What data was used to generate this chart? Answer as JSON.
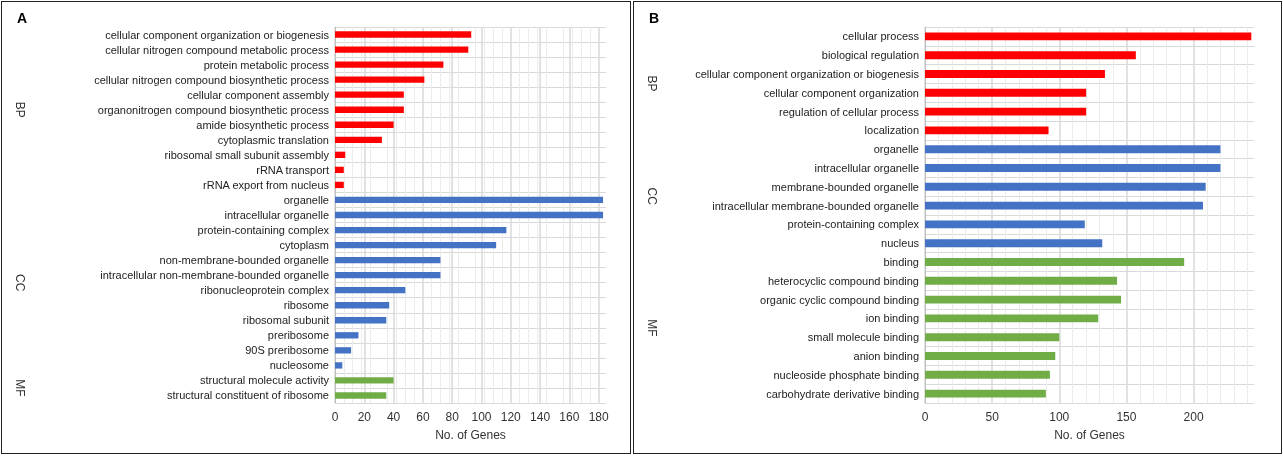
{
  "chart_data": [
    {
      "type": "bar",
      "orientation": "horizontal",
      "title": "A",
      "xlabel": "No. of Genes",
      "grid": true,
      "categories": [
        "cellular component organization or biogenesis",
        "cellular nitrogen compound metabolic process",
        "protein metabolic process",
        "cellular nitrogen compound biosynthetic process",
        "cellular component assembly",
        "organonitrogen compound biosynthetic process",
        "amide biosynthetic process",
        "cytoplasmic translation",
        "ribosomal small subunit assembly",
        "rRNA transport",
        "rRNA export from nucleus",
        "organelle",
        "intracellular organelle",
        "protein-containing complex",
        "cytoplasm",
        "non-membrane-bounded organelle",
        "intracellular non-membrane-bounded organelle",
        "ribonucleoprotein complex",
        "ribosome",
        "ribosomal subunit",
        "preribosome",
        "90S preribosome",
        "nucleosome",
        "structural molecule activity",
        "structural constituent of ribosome"
      ],
      "values": [
        93,
        91,
        74,
        61,
        47,
        47,
        40,
        32,
        7,
        6,
        6,
        183,
        183,
        117,
        110,
        72,
        72,
        48,
        37,
        35,
        16,
        11,
        5,
        40,
        35
      ],
      "colors": [
        "#ff0000",
        "#ff0000",
        "#ff0000",
        "#ff0000",
        "#ff0000",
        "#ff0000",
        "#ff0000",
        "#ff0000",
        "#ff0000",
        "#ff0000",
        "#ff0000",
        "#4472c4",
        "#4472c4",
        "#4472c4",
        "#4472c4",
        "#4472c4",
        "#4472c4",
        "#4472c4",
        "#4472c4",
        "#4472c4",
        "#4472c4",
        "#4472c4",
        "#4472c4",
        "#70ad47",
        "#70ad47"
      ],
      "xlim": [
        0,
        185
      ],
      "xticks": [
        0,
        20,
        40,
        60,
        80,
        100,
        120,
        140,
        160,
        180
      ],
      "annotations": [
        "BP",
        "CC",
        "MF"
      ]
    },
    {
      "type": "bar",
      "orientation": "horizontal",
      "title": "B",
      "xlabel": "No. of Genes",
      "grid": true,
      "categories": [
        "cellular process",
        "biological regulation",
        "cellular component organization or biogenesis",
        "cellular component organization",
        "regulation of cellular process",
        "localization",
        "organelle",
        "intracellular organelle",
        "membrane-bounded organelle",
        "intracellular membrane-bounded organelle",
        "protein-containing complex",
        "nucleus",
        "binding",
        "heterocyclic compound binding",
        "organic cyclic compound binding",
        "ion binding",
        "small molecule binding",
        "anion binding",
        "nucleoside phosphate binding",
        "carbohydrate derivative binding"
      ],
      "values": [
        243,
        157,
        134,
        120,
        120,
        92,
        220,
        220,
        209,
        207,
        119,
        132,
        193,
        143,
        146,
        129,
        100,
        97,
        93,
        90
      ],
      "colors": [
        "#ff0000",
        "#ff0000",
        "#ff0000",
        "#ff0000",
        "#ff0000",
        "#ff0000",
        "#4472c4",
        "#4472c4",
        "#4472c4",
        "#4472c4",
        "#4472c4",
        "#4472c4",
        "#70ad47",
        "#70ad47",
        "#70ad47",
        "#70ad47",
        "#70ad47",
        "#70ad47",
        "#70ad47",
        "#70ad47"
      ],
      "xlim": [
        0,
        245
      ],
      "xticks": [
        0,
        50,
        100,
        150,
        200
      ],
      "annotations": [
        "BP",
        "CC",
        "MF"
      ]
    }
  ]
}
